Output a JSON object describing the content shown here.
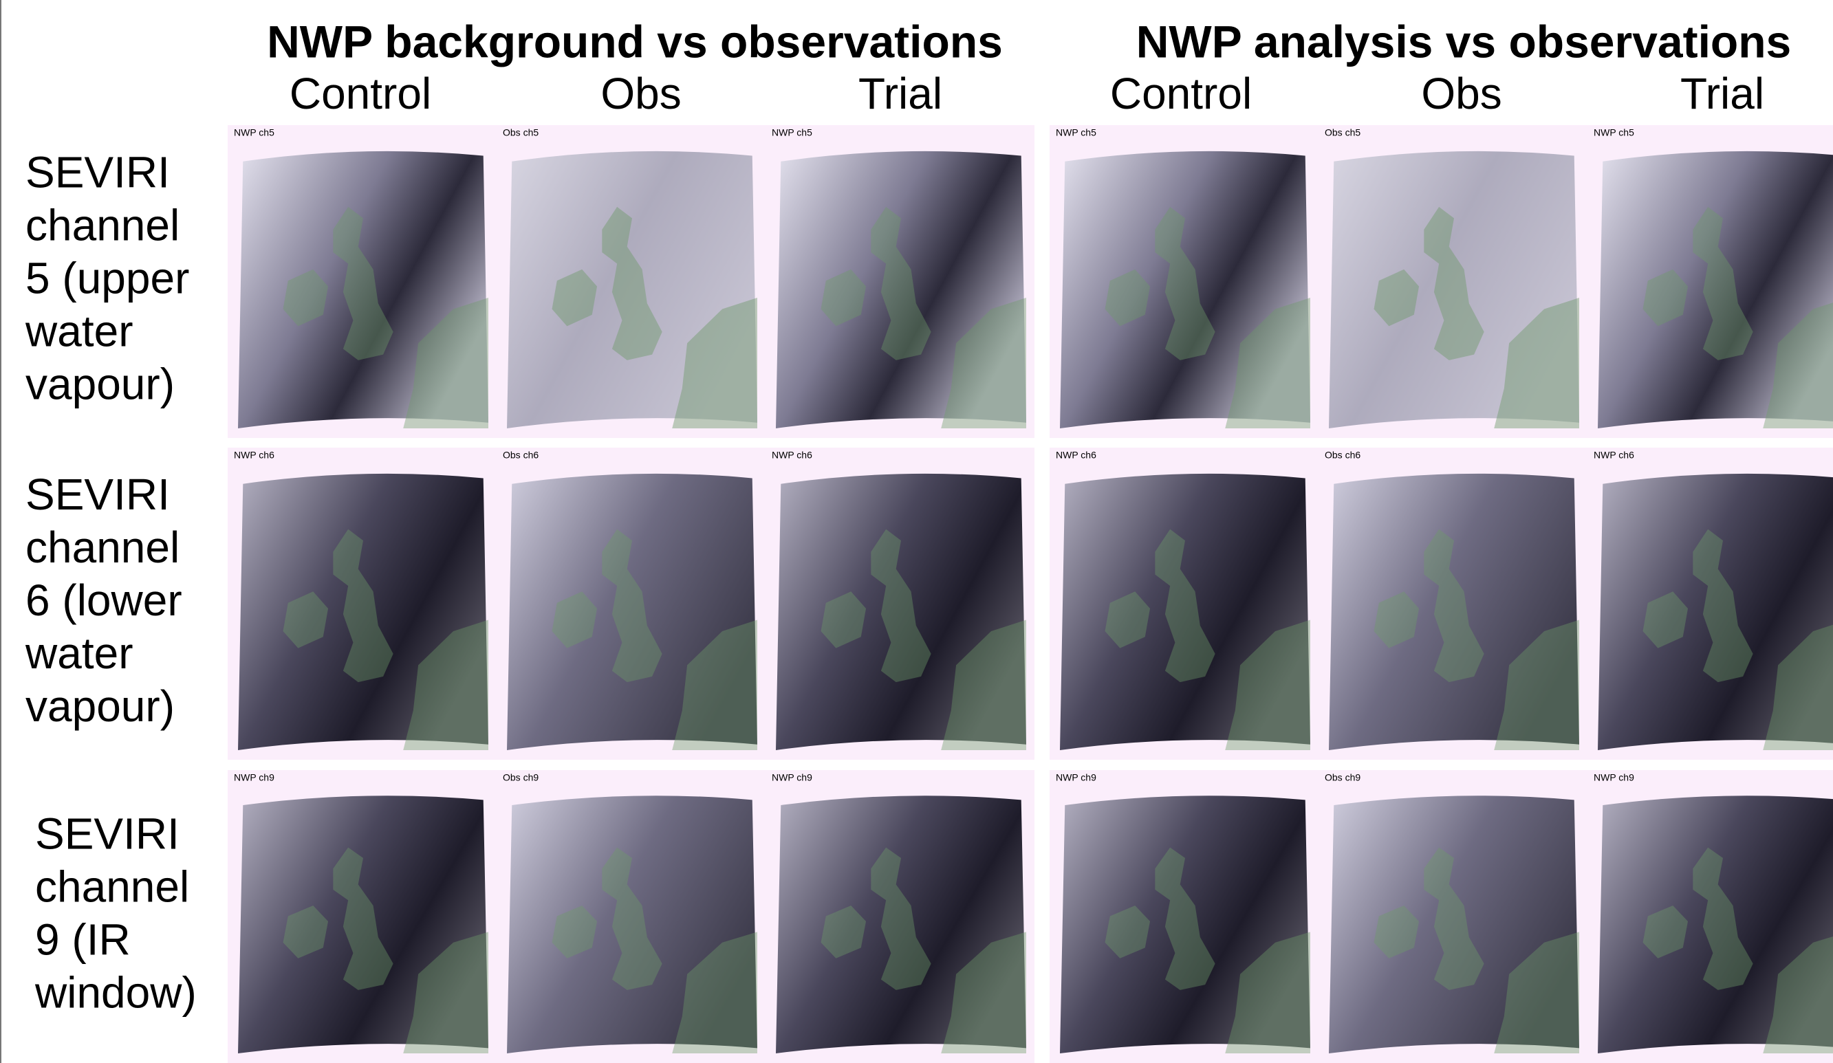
{
  "headers": [
    "NWP background vs observations",
    "NWP analysis vs observations"
  ],
  "columns": [
    "Control",
    "Obs",
    "Trial",
    "Control",
    "Obs",
    "Trial"
  ],
  "rows": [
    {
      "label": [
        "SEVIRI",
        "channel",
        "5 (upper",
        "water",
        "vapour)"
      ],
      "panels": [
        "NWP ch5",
        "Obs ch5",
        "NWP ch5",
        "NWP ch5",
        "Obs ch5",
        "NWP ch5"
      ]
    },
    {
      "label": [
        "SEVIRI",
        "channel",
        "6 (lower",
        "water",
        "vapour)"
      ],
      "panels": [
        "NWP ch6",
        "Obs ch6",
        "NWP ch6",
        "NWP ch6",
        "Obs ch6",
        "NWP ch6"
      ]
    },
    {
      "label": [
        "SEVIRI",
        "channel",
        "9 (IR",
        "window)"
      ],
      "panels": [
        "NWP ch9",
        "Obs ch9",
        "NWP ch9",
        "NWP ch9",
        "Obs ch9",
        "NWP ch9"
      ]
    }
  ]
}
